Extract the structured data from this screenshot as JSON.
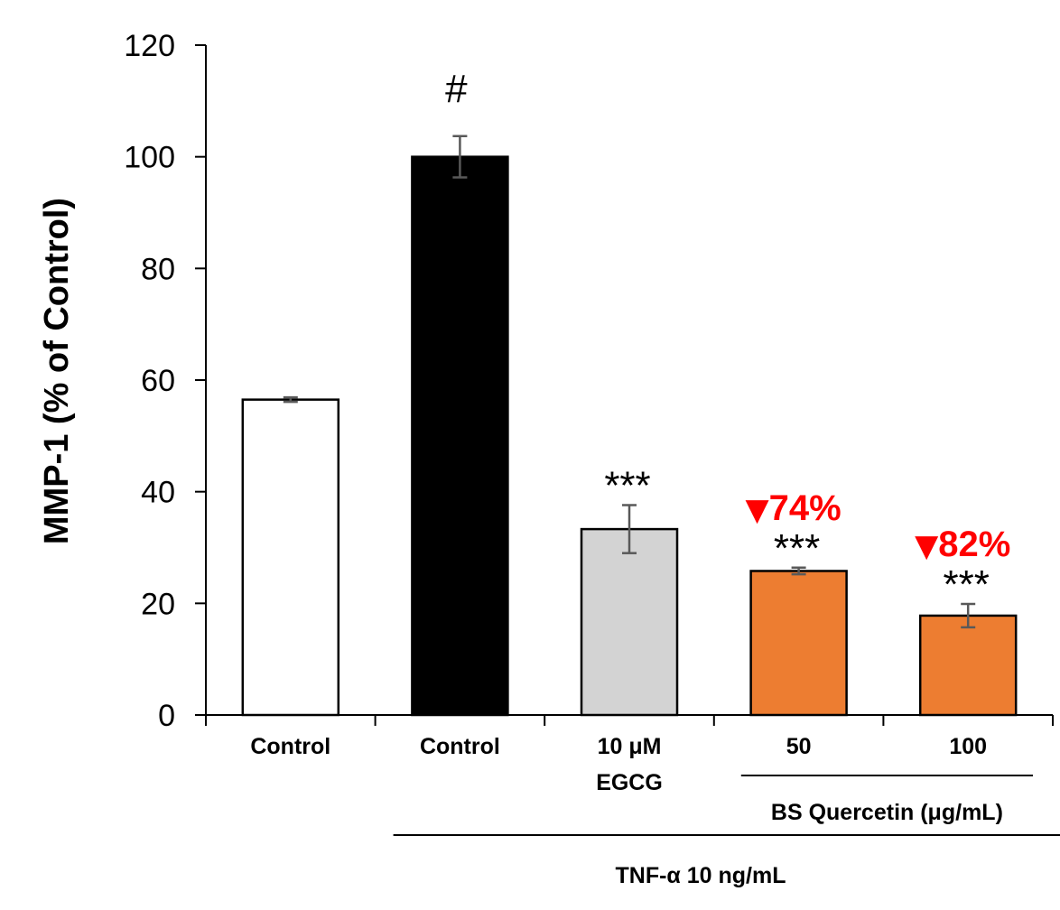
{
  "chart_data": {
    "type": "bar",
    "title": "",
    "xlabel": "",
    "ylabel": "MMP-1 (% of Control)",
    "ylim": [
      0,
      120
    ],
    "yticks": [
      0,
      20,
      40,
      60,
      80,
      100,
      120
    ],
    "grid": false,
    "bars": [
      {
        "label_lines": [
          "Control"
        ],
        "value": 56.5,
        "error": 0.4,
        "color": "#ffffff",
        "annotation": "",
        "reduction": ""
      },
      {
        "label_lines": [
          "Control"
        ],
        "value": 100,
        "error": 3.7,
        "color": "#000000",
        "annotation": "#",
        "reduction": ""
      },
      {
        "label_lines": [
          "10 μM",
          "EGCG"
        ],
        "value": 33.3,
        "error": 4.3,
        "color": "#d3d3d3",
        "annotation": "***",
        "reduction": ""
      },
      {
        "label_lines": [
          "50"
        ],
        "value": 25.8,
        "error": 0.6,
        "color": "#ed7d31",
        "annotation": "***",
        "reduction": "74%"
      },
      {
        "label_lines": [
          "100"
        ],
        "value": 17.8,
        "error": 2.1,
        "color": "#ed7d31",
        "annotation": "***",
        "reduction": "82%"
      }
    ],
    "group_labels": {
      "bs_quercetin": "BS Quercetin (μg/mL)",
      "tnf": "TNF-α 10 ng/mL"
    },
    "reduction_marker": "▼",
    "reduction_color": "#ff0000"
  }
}
